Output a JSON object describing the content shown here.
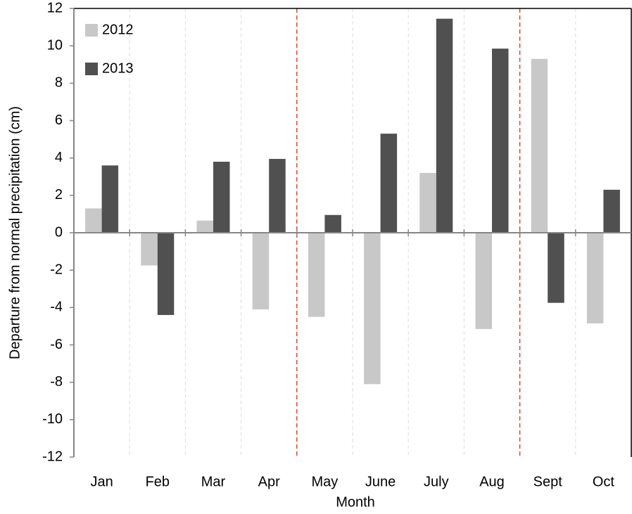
{
  "chart_data": {
    "type": "bar",
    "xlabel": "Month",
    "ylabel": "Departure from normal precipitation (cm)",
    "categories": [
      "Jan",
      "Feb",
      "Mar",
      "Apr",
      "May",
      "June",
      "July",
      "Aug",
      "Sept",
      "Oct"
    ],
    "series": [
      {
        "name": "2012",
        "color": "#c8c8c8",
        "values": [
          1.3,
          -1.75,
          0.65,
          -4.1,
          -4.5,
          -8.1,
          3.2,
          -5.15,
          9.3,
          -4.85
        ]
      },
      {
        "name": "2013",
        "color": "#505050",
        "values": [
          3.6,
          -4.4,
          3.8,
          3.95,
          0.95,
          5.3,
          11.45,
          9.85,
          -3.75,
          2.3
        ]
      }
    ],
    "ylim": [
      -12,
      12
    ],
    "yticks": [
      -12,
      -10,
      -8,
      -6,
      -4,
      -2,
      0,
      2,
      4,
      6,
      8,
      10,
      12
    ],
    "legend": "upper-left"
  }
}
